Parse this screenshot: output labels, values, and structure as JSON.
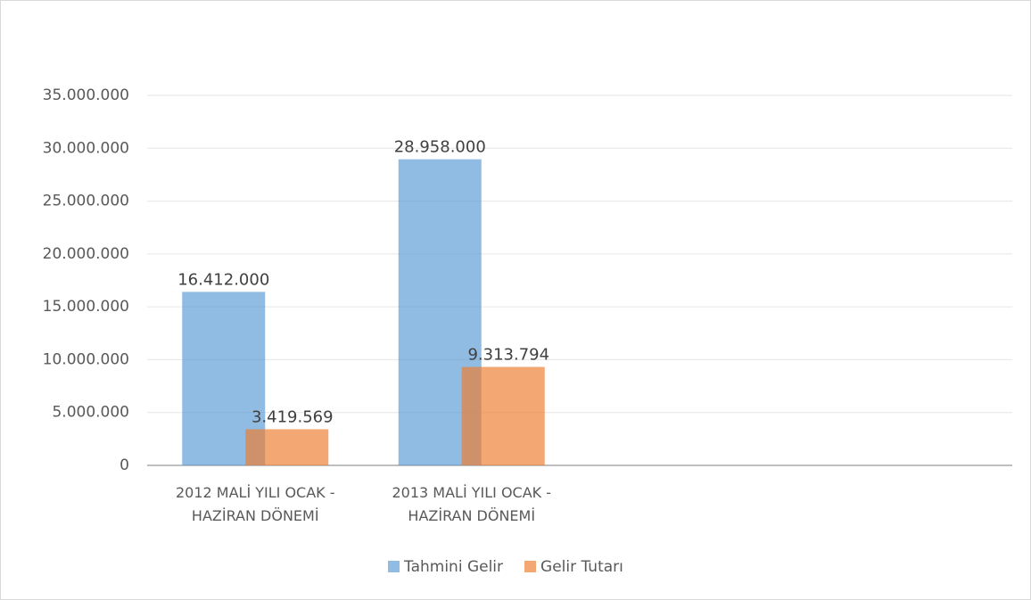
{
  "chart_data": {
    "type": "bar",
    "categories": [
      "2012 MALİ YILI OCAK - HAZİRAN DÖNEMİ",
      "2013 MALİ YILI OCAK - HAZİRAN DÖNEMİ",
      null,
      null
    ],
    "series": [
      {
        "name": "Tahmini Gelir",
        "color": "#5b9bd5",
        "values": [
          16412000,
          28958000,
          null,
          null
        ],
        "value_labels": [
          "16.412.000",
          "28.958.000",
          null,
          null
        ]
      },
      {
        "name": "Gelir Tutarı",
        "color": "#ed7d31",
        "values": [
          3419569,
          9313794,
          null,
          null
        ],
        "value_labels": [
          "3.419.569",
          "9.313.794",
          null,
          null
        ]
      }
    ],
    "ylim": [
      0,
      35000000
    ],
    "yticks": [
      0,
      {
        "value": 5000000,
        "label": "5.000.000"
      },
      {
        "value": 10000000,
        "label": "10.000.000"
      },
      {
        "value": 15000000,
        "label": "15.000.000"
      },
      {
        "value": 20000000,
        "label": "20.000.000"
      },
      {
        "value": 25000000,
        "label": "25.000.000"
      },
      {
        "value": 30000000,
        "label": "30.000.000"
      },
      {
        "value": 35000000,
        "label": "35.000.000"
      }
    ],
    "grid": true,
    "legend": "bottom"
  }
}
